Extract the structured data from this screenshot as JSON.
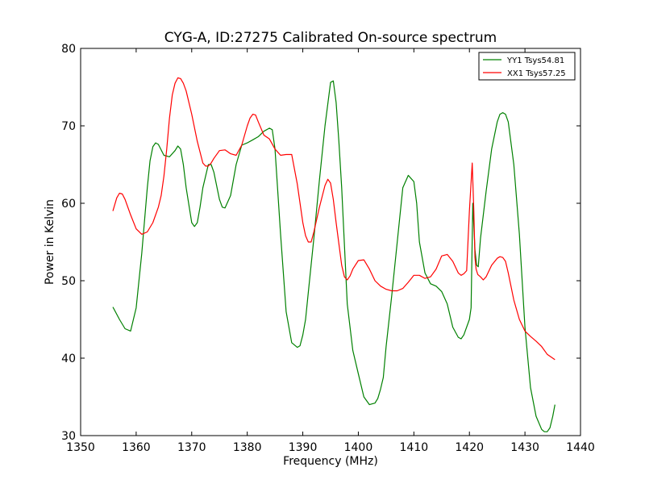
{
  "chart_data": {
    "type": "line",
    "title": "CYG-A, ID:27275 Calibrated On-source spectrum",
    "xlabel": "Frequency (MHz)",
    "ylabel": "Power in Kelvin",
    "xlim": [
      1350,
      1440
    ],
    "ylim": [
      30,
      80
    ],
    "xticks": [
      1350,
      1360,
      1370,
      1380,
      1390,
      1400,
      1410,
      1420,
      1430,
      1440
    ],
    "yticks": [
      30,
      40,
      50,
      60,
      70,
      80
    ],
    "grid": false,
    "legend_position": "top-right",
    "series": [
      {
        "name": "YY1 Tsys54.81",
        "color": "#008000",
        "x": [
          1355.8,
          1357,
          1358,
          1359,
          1360,
          1361,
          1362,
          1362.5,
          1363,
          1363.5,
          1364,
          1365,
          1366,
          1367,
          1367.5,
          1368,
          1368.5,
          1369,
          1370,
          1370.5,
          1371,
          1371.5,
          1372,
          1373,
          1373.5,
          1374,
          1375,
          1375.5,
          1376,
          1377,
          1378,
          1379,
          1380,
          1381,
          1382,
          1383,
          1384,
          1384.5,
          1385,
          1386,
          1387,
          1388,
          1389,
          1389.5,
          1390,
          1390.5,
          1391,
          1392,
          1393,
          1394,
          1395,
          1395.5,
          1396,
          1396.5,
          1397,
          1398,
          1399,
          1400,
          1401,
          1402,
          1403,
          1403.5,
          1404,
          1404.5,
          1405,
          1406,
          1407,
          1408,
          1409,
          1410,
          1410.5,
          1411,
          1412,
          1413,
          1414,
          1415,
          1416,
          1417,
          1418,
          1418.5,
          1419,
          1420,
          1420.3,
          1420.6,
          1421,
          1421.3,
          1421.6,
          1422,
          1423,
          1424,
          1425,
          1425.5,
          1426,
          1426.5,
          1427,
          1428,
          1429,
          1430,
          1431,
          1432,
          1433,
          1433.5,
          1434,
          1434.5,
          1435,
          1435.4
        ],
        "y": [
          46.6,
          45,
          43.8,
          43.5,
          46.5,
          53.5,
          62,
          65.5,
          67.3,
          67.8,
          67.6,
          66.2,
          66,
          66.8,
          67.4,
          67,
          65,
          62,
          57.5,
          57,
          57.5,
          59.5,
          62,
          65,
          65,
          64,
          60.5,
          59.5,
          59.4,
          61,
          65,
          67.5,
          67.8,
          68.2,
          68.6,
          69.3,
          69.7,
          69.5,
          67,
          56,
          46,
          42,
          41.4,
          41.6,
          43,
          45,
          48.5,
          55.5,
          63,
          70,
          75.6,
          75.8,
          73,
          68,
          62,
          47,
          41,
          38,
          35,
          34,
          34.2,
          34.8,
          36,
          37.5,
          41.5,
          48,
          55,
          62,
          63.6,
          62.8,
          60,
          55,
          51,
          49.6,
          49.3,
          48.6,
          47,
          44,
          42.7,
          42.5,
          43,
          45,
          46.5,
          60,
          54,
          52,
          51.8,
          55.5,
          61.5,
          67,
          70.5,
          71.5,
          71.7,
          71.5,
          70.5,
          65,
          56,
          44,
          36.2,
          32.5,
          30.8,
          30.5,
          30.5,
          31,
          32.5,
          34
        ]
      },
      {
        "name": "XX1 Tsys57.25",
        "color": "#ff0000",
        "x": [
          1355.8,
          1356.5,
          1357,
          1357.5,
          1358,
          1359,
          1360,
          1361,
          1362,
          1363,
          1364,
          1364.5,
          1365,
          1365.5,
          1366,
          1366.5,
          1367,
          1367.5,
          1368,
          1368.5,
          1369,
          1370,
          1371,
          1372,
          1372.5,
          1373,
          1373.5,
          1374,
          1375,
          1376,
          1377,
          1378,
          1379,
          1380,
          1380.5,
          1381,
          1381.5,
          1382,
          1383,
          1384,
          1385,
          1386,
          1387,
          1388,
          1389,
          1390,
          1390.5,
          1391,
          1391.5,
          1392,
          1393,
          1394,
          1394.5,
          1395,
          1395.5,
          1396,
          1397,
          1397.5,
          1398,
          1398.5,
          1399,
          1400,
          1401,
          1402,
          1403,
          1404,
          1405,
          1406,
          1407,
          1408,
          1409,
          1410,
          1411,
          1412,
          1413,
          1414,
          1415,
          1416,
          1417,
          1418,
          1418.5,
          1419,
          1419.5,
          1420,
          1420.5,
          1420.8,
          1421,
          1421.2,
          1421.5,
          1422,
          1422.5,
          1423,
          1424,
          1425,
          1425.5,
          1426,
          1426.5,
          1427,
          1428,
          1429,
          1430,
          1431,
          1432,
          1433,
          1434,
          1435.4
        ],
        "y": [
          59,
          60.7,
          61.3,
          61.2,
          60.5,
          58.5,
          56.7,
          56,
          56.3,
          57.5,
          59.5,
          61,
          63.5,
          67,
          71,
          74,
          75.5,
          76.2,
          76.1,
          75.5,
          74.5,
          71.5,
          68,
          65.2,
          64.8,
          64.8,
          65.2,
          65.8,
          66.8,
          66.9,
          66.4,
          66.2,
          67.5,
          70,
          71,
          71.5,
          71.4,
          70.5,
          68.8,
          68.3,
          67,
          66.2,
          66.3,
          66.3,
          62.5,
          57.5,
          55.8,
          55,
          55,
          56.3,
          59.5,
          62.3,
          63.1,
          62.6,
          60.5,
          57.5,
          52,
          50.5,
          50.1,
          50.6,
          51.5,
          52.6,
          52.7,
          51.5,
          50,
          49.3,
          48.9,
          48.7,
          48.7,
          49,
          49.8,
          50.7,
          50.7,
          50.3,
          50.5,
          51.5,
          53.2,
          53.4,
          52.5,
          51,
          50.7,
          50.9,
          51.3,
          59,
          65.2,
          59,
          53,
          51.5,
          50.8,
          50.5,
          50.1,
          50.5,
          52,
          52.9,
          53.1,
          53,
          52.5,
          51,
          47.5,
          45,
          43.5,
          42.8,
          42.2,
          41.5,
          40.5,
          39.8
        ]
      }
    ]
  }
}
